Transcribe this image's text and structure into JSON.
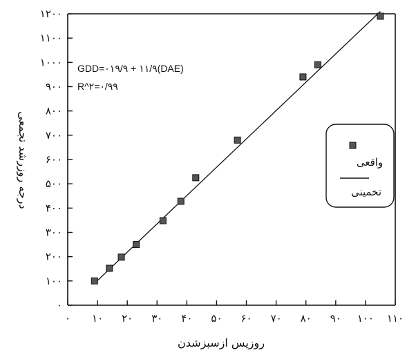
{
  "chart_data": {
    "type": "scatter",
    "xlabel": "روزپس ازسبزشدن",
    "ylabel": "درجه روزرشد تجمعی",
    "xlim": [
      0,
      110
    ],
    "ylim": [
      0,
      1200
    ],
    "xticks": [
      0,
      10,
      20,
      30,
      40,
      50,
      60,
      70,
      80,
      90,
      100,
      110
    ],
    "xtick_labels": [
      "۰",
      "۱۰",
      "۲۰",
      "۳۰",
      "۴۰",
      "۵۰",
      "۶۰",
      "۷۰",
      "۸۰",
      "۹۰",
      "۱۰۰",
      "۱۱۰"
    ],
    "yticks": [
      0,
      100,
      200,
      300,
      400,
      500,
      600,
      700,
      800,
      900,
      1000,
      1100,
      1200
    ],
    "ytick_labels": [
      "۰",
      "۱۰۰",
      "۲۰۰",
      "۳۰۰",
      "۴۰۰",
      "۵۰۰",
      "۶۰۰",
      "۷۰۰",
      "۸۰۰",
      "۹۰۰",
      "۱۰۰۰",
      "۱۱۰۰",
      "۱۲۰۰"
    ],
    "annotations": [
      "GDD=۰۱۹/۹ + ۱۱/۹(DAE)",
      "R^۲=۰/۹۹"
    ],
    "legend_position": "right",
    "grid": false,
    "series": [
      {
        "name": "واقعی",
        "kind": "points",
        "x": [
          9,
          14,
          18,
          23,
          32,
          38,
          43,
          57,
          79,
          84,
          105
        ],
        "y": [
          100,
          152,
          198,
          250,
          348,
          428,
          525,
          680,
          940,
          990,
          1190
        ]
      },
      {
        "name": "تخمینی",
        "kind": "line",
        "x": [
          9,
          105
        ],
        "y": [
          90,
          1210
        ]
      }
    ]
  }
}
